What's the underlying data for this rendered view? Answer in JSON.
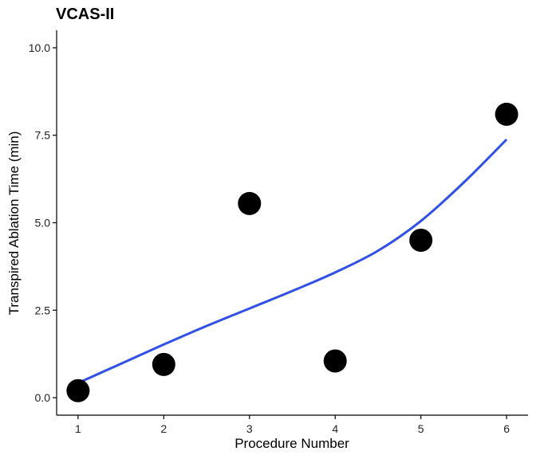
{
  "chart_data": {
    "type": "scatter",
    "title": "VCAS-II",
    "xlabel": "Procedure Number",
    "ylabel": "Transpired Ablation Time (min)",
    "xlim": [
      0.75,
      6.25
    ],
    "ylim": [
      -0.5,
      10.5
    ],
    "xticks": [
      1,
      2,
      3,
      4,
      5,
      6
    ],
    "xtick_labels": [
      "1",
      "2",
      "3",
      "4",
      "5",
      "6"
    ],
    "yticks": [
      0,
      2.5,
      5,
      7.5,
      10
    ],
    "ytick_labels": [
      "0.0",
      "2.5",
      "5.0",
      "7.5",
      "10.0"
    ],
    "grid": false,
    "series": [
      {
        "kind": "points",
        "color": "#000000",
        "x": [
          1,
          2,
          3,
          4,
          5,
          6
        ],
        "y": [
          0.2,
          0.95,
          5.55,
          1.05,
          4.5,
          8.1
        ]
      },
      {
        "kind": "smooth-line",
        "color": "#3050e8",
        "x": [
          1,
          1.5,
          2,
          2.5,
          3,
          3.5,
          4,
          4.5,
          5,
          5.5,
          6
        ],
        "y": [
          0.42,
          0.97,
          1.52,
          2.05,
          2.55,
          3.05,
          3.58,
          4.2,
          5.05,
          6.15,
          7.38
        ]
      }
    ]
  }
}
